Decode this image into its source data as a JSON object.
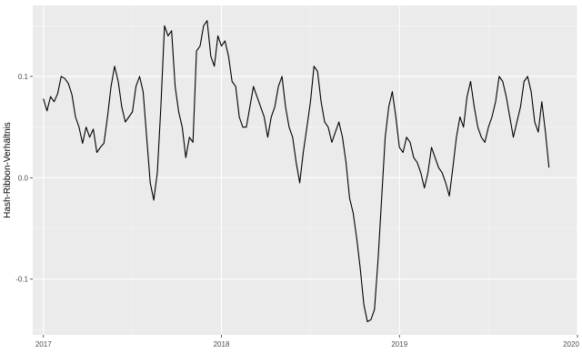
{
  "colors": {
    "panel": "#ebebeb",
    "grid_major": "#ffffff",
    "grid_minor": "#f5f5f5",
    "line": "#000000",
    "tick_text": "#4d4d4d"
  },
  "chart_data": {
    "type": "line",
    "title": "",
    "xlabel": "",
    "ylabel": "Hash-Ribbon-Verhältnis",
    "grid": true,
    "legend": "none",
    "xlim": [
      2016.94,
      2020.0
    ],
    "ylim": [
      -0.155,
      0.17
    ],
    "x_ticks": [
      2017,
      2018,
      2019,
      2020
    ],
    "x_tick_labels": [
      "2017",
      "2018",
      "2019",
      "2020"
    ],
    "y_ticks": [
      -0.1,
      0.0,
      0.1
    ],
    "y_tick_labels": [
      "-0.1",
      "0.0",
      "0.1"
    ],
    "series": [
      {
        "x": [
          2017.0,
          2017.02,
          2017.04,
          2017.06,
          2017.08,
          2017.1,
          2017.12,
          2017.14,
          2017.16,
          2017.18,
          2017.2,
          2017.22,
          2017.24,
          2017.26,
          2017.28,
          2017.3,
          2017.32,
          2017.34,
          2017.36,
          2017.38,
          2017.4,
          2017.42,
          2017.44,
          2017.46,
          2017.48,
          2017.5,
          2017.52,
          2017.54,
          2017.56,
          2017.58,
          2017.6,
          2017.62,
          2017.64,
          2017.66,
          2017.68,
          2017.7,
          2017.72,
          2017.74,
          2017.76,
          2017.78,
          2017.8,
          2017.82,
          2017.84,
          2017.86,
          2017.88,
          2017.9,
          2017.92,
          2017.94,
          2017.96,
          2017.98,
          2018.0,
          2018.02,
          2018.04,
          2018.06,
          2018.08,
          2018.1,
          2018.12,
          2018.14,
          2018.16,
          2018.18,
          2018.2,
          2018.22,
          2018.24,
          2018.26,
          2018.28,
          2018.3,
          2018.32,
          2018.34,
          2018.36,
          2018.38,
          2018.4,
          2018.42,
          2018.44,
          2018.46,
          2018.48,
          2018.5,
          2018.52,
          2018.54,
          2018.56,
          2018.58,
          2018.6,
          2018.62,
          2018.64,
          2018.66,
          2018.68,
          2018.7,
          2018.72,
          2018.74,
          2018.76,
          2018.78,
          2018.8,
          2018.82,
          2018.84,
          2018.86,
          2018.88,
          2018.9,
          2018.92,
          2018.94,
          2018.96,
          2018.98,
          2019.0,
          2019.02,
          2019.04,
          2019.06,
          2019.08,
          2019.1,
          2019.12,
          2019.14,
          2019.16,
          2019.18,
          2019.2,
          2019.22,
          2019.24,
          2019.26,
          2019.28,
          2019.3,
          2019.32,
          2019.34,
          2019.36,
          2019.38,
          2019.4,
          2019.42,
          2019.44,
          2019.46,
          2019.48,
          2019.5,
          2019.52,
          2019.54,
          2019.56,
          2019.58,
          2019.6,
          2019.62,
          2019.64,
          2019.66,
          2019.68,
          2019.7,
          2019.72,
          2019.74,
          2019.76,
          2019.78,
          2019.8,
          2019.82,
          2019.84
        ],
        "y": [
          0.078,
          0.066,
          0.08,
          0.075,
          0.083,
          0.1,
          0.098,
          0.093,
          0.082,
          0.06,
          0.05,
          0.034,
          0.05,
          0.04,
          0.048,
          0.025,
          0.03,
          0.034,
          0.06,
          0.09,
          0.11,
          0.095,
          0.07,
          0.055,
          0.06,
          0.065,
          0.09,
          0.1,
          0.085,
          0.04,
          -0.005,
          -0.022,
          0.005,
          0.07,
          0.15,
          0.14,
          0.145,
          0.09,
          0.065,
          0.05,
          0.02,
          0.04,
          0.035,
          0.125,
          0.13,
          0.15,
          0.155,
          0.12,
          0.11,
          0.14,
          0.13,
          0.135,
          0.12,
          0.095,
          0.09,
          0.06,
          0.05,
          0.05,
          0.07,
          0.09,
          0.08,
          0.07,
          0.06,
          0.04,
          0.06,
          0.07,
          0.09,
          0.1,
          0.07,
          0.05,
          0.04,
          0.015,
          -0.005,
          0.025,
          0.05,
          0.075,
          0.11,
          0.105,
          0.075,
          0.055,
          0.05,
          0.035,
          0.045,
          0.055,
          0.04,
          0.015,
          -0.02,
          -0.035,
          -0.06,
          -0.09,
          -0.125,
          -0.142,
          -0.14,
          -0.13,
          -0.08,
          -0.02,
          0.04,
          0.07,
          0.085,
          0.06,
          0.03,
          0.025,
          0.04,
          0.035,
          0.02,
          0.015,
          0.005,
          -0.01,
          0.005,
          0.03,
          0.02,
          0.01,
          0.005,
          -0.005,
          -0.018,
          0.01,
          0.04,
          0.06,
          0.05,
          0.08,
          0.095,
          0.07,
          0.05,
          0.04,
          0.035,
          0.05,
          0.06,
          0.075,
          0.1,
          0.095,
          0.08,
          0.06,
          0.04,
          0.055,
          0.07,
          0.095,
          0.1,
          0.085,
          0.055,
          0.045,
          0.075,
          0.045,
          0.01
        ]
      }
    ]
  }
}
